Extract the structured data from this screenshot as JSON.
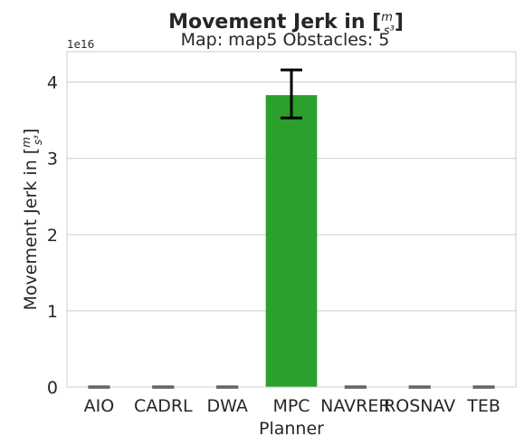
{
  "chart_data": {
    "type": "bar",
    "title": "Movement Jerk in [m/s³]",
    "subtitle": "Map: map5 Obstacles: 5",
    "xlabel": "Planner",
    "ylabel": "Movement Jerk in [m/s³]",
    "y_offset_label": "1e16",
    "categories": [
      "AIO",
      "CADRL",
      "DWA",
      "MPC",
      "NAVRER",
      "ROSNAV",
      "TEB"
    ],
    "values": [
      0,
      0,
      0,
      3.83,
      0,
      0,
      0
    ],
    "error_low": [
      0,
      0,
      0,
      3.53,
      0,
      0,
      0
    ],
    "error_high": [
      0,
      0,
      0,
      4.16,
      0,
      0,
      0
    ],
    "value_scale": "1e16",
    "ylim": [
      0,
      4.4
    ],
    "yticks": [
      0,
      1,
      2,
      3,
      4
    ],
    "grid": "horizontal",
    "bar_color": "#2ca02c",
    "legend": "none"
  }
}
